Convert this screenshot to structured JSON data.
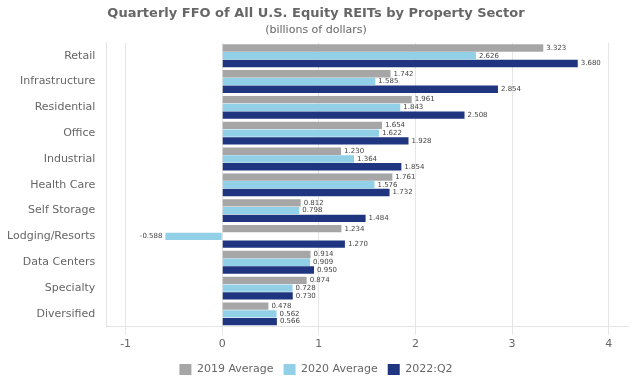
{
  "chart_data": {
    "type": "bar",
    "orientation": "horizontal",
    "title": "Quarterly FFO of All U.S. Equity REITs by Property Sector",
    "subtitle": "(billions of dollars)",
    "categories": [
      "Retail",
      "Infrastructure",
      "Residential",
      "Office",
      "Industrial",
      "Health Care",
      "Self Storage",
      "Lodging/Resorts",
      "Data Centers",
      "Specialty",
      "Diversified"
    ],
    "series": [
      {
        "name": "2019 Average",
        "color": "#a6a6a6",
        "values": [
          3.323,
          1.742,
          1.961,
          1.654,
          1.23,
          1.761,
          0.812,
          1.234,
          0.914,
          0.874,
          0.478
        ],
        "value_labels": [
          "3.323",
          "1.742",
          "1.961",
          "1.654",
          "1.230",
          "1.761",
          "0.812",
          "1.234",
          "0.914",
          "0.874",
          "0.478"
        ]
      },
      {
        "name": "2020 Average",
        "color": "#92d0e8",
        "values": [
          2.626,
          1.585,
          1.843,
          1.622,
          1.364,
          1.576,
          0.798,
          -0.588,
          0.909,
          0.728,
          0.562
        ],
        "value_labels": [
          "2.626",
          "1.585",
          "1.843",
          "1.622",
          "1.364",
          "1.576",
          "0.798",
          "-0.588",
          "0.909",
          "0.728",
          "0.562"
        ]
      },
      {
        "name": "2022:Q2",
        "color": "#1f3580",
        "values": [
          3.68,
          2.854,
          2.508,
          1.928,
          1.854,
          1.732,
          1.484,
          1.27,
          0.95,
          0.73,
          0.566
        ],
        "value_labels": [
          "3.680",
          "2.854",
          "2.508",
          "1.928",
          "1.854",
          "1.732",
          "1.484",
          "1.270",
          "0.950",
          "0.730",
          "0.566"
        ]
      }
    ],
    "xlim": [
      -1.2,
      4.2
    ],
    "xticks": [
      -1,
      0,
      1,
      2,
      3,
      4
    ],
    "grid": true,
    "legend": "bottom",
    "data_labels": true
  }
}
